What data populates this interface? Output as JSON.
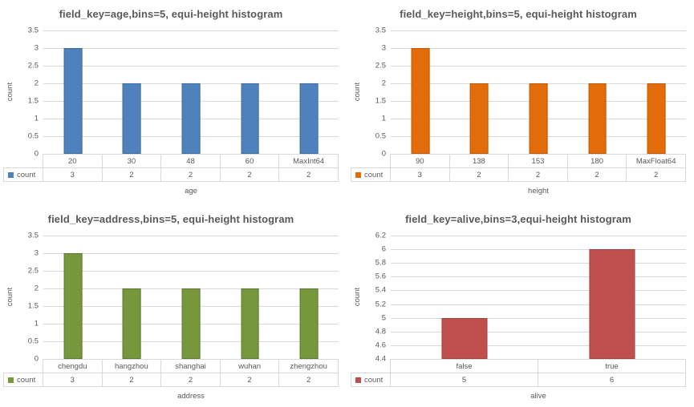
{
  "page": {
    "background": "#FFFFFF",
    "text_color": "#595959",
    "gridline_color": "#D9D9D9",
    "table_border_color": "#D9D9D9"
  },
  "chart_data": [
    {
      "type": "bar",
      "title": "field_key=age,bins=5, equi-height histogram",
      "xlabel": "age",
      "ylabel": "count",
      "categories": [
        "20",
        "30",
        "48",
        "60",
        "MaxInt64"
      ],
      "series": [
        {
          "name": "count",
          "values": [
            3,
            2,
            2,
            2,
            2
          ]
        }
      ],
      "ylim": [
        0,
        3.5
      ],
      "yticks": [
        "3.5",
        "3",
        "2.5",
        "2",
        "1.5",
        "1",
        "0.5",
        "0"
      ],
      "grid": true,
      "data_table": true,
      "legend_position": "data-table-left",
      "legend_label": "count",
      "bar_color": "#4F81BD",
      "bar_border_color": "#3E6C9F"
    },
    {
      "type": "bar",
      "title": "field_key=height,bins=5, equi-height histogram",
      "xlabel": "height",
      "ylabel": "count",
      "categories": [
        "90",
        "138",
        "153",
        "180",
        "MaxFloat64"
      ],
      "series": [
        {
          "name": "count",
          "values": [
            3,
            2,
            2,
            2,
            2
          ]
        }
      ],
      "ylim": [
        0,
        3.5
      ],
      "yticks": [
        "3.5",
        "3",
        "2.5",
        "2",
        "1.5",
        "1",
        "0.5",
        "0"
      ],
      "grid": true,
      "data_table": true,
      "legend_position": "data-table-left",
      "legend_label": "count",
      "bar_color": "#E36C0A",
      "bar_border_color": "#BE5B08"
    },
    {
      "type": "bar",
      "title": "field_key=address,bins=5, equi-height histogram",
      "xlabel": "address",
      "ylabel": "count",
      "categories": [
        "chengdu",
        "hangzhou",
        "shanghai",
        "wuhan",
        "zhengzhou"
      ],
      "series": [
        {
          "name": "count",
          "values": [
            3,
            2,
            2,
            2,
            2
          ]
        }
      ],
      "ylim": [
        0,
        3.5
      ],
      "yticks": [
        "3.5",
        "3",
        "2.5",
        "2",
        "1.5",
        "1",
        "0.5",
        "0"
      ],
      "grid": true,
      "data_table": true,
      "legend_position": "data-table-left",
      "legend_label": "count",
      "bar_color": "#77973C",
      "bar_border_color": "#5F7A30"
    },
    {
      "type": "bar",
      "title": "field_key=alive,bins=3,equi-height histogram",
      "xlabel": "alive",
      "ylabel": "count",
      "categories": [
        "false",
        "true"
      ],
      "series": [
        {
          "name": "count",
          "values": [
            5,
            6
          ]
        }
      ],
      "ylim": [
        4.4,
        6.2
      ],
      "yticks": [
        "6.2",
        "6",
        "5.8",
        "5.6",
        "5.4",
        "5.2",
        "5",
        "4.8",
        "4.6",
        "4.4"
      ],
      "grid": true,
      "data_table": true,
      "legend_position": "data-table-left",
      "legend_label": "count",
      "bar_color": "#C0504D",
      "bar_border_color": "#9E423F"
    }
  ]
}
